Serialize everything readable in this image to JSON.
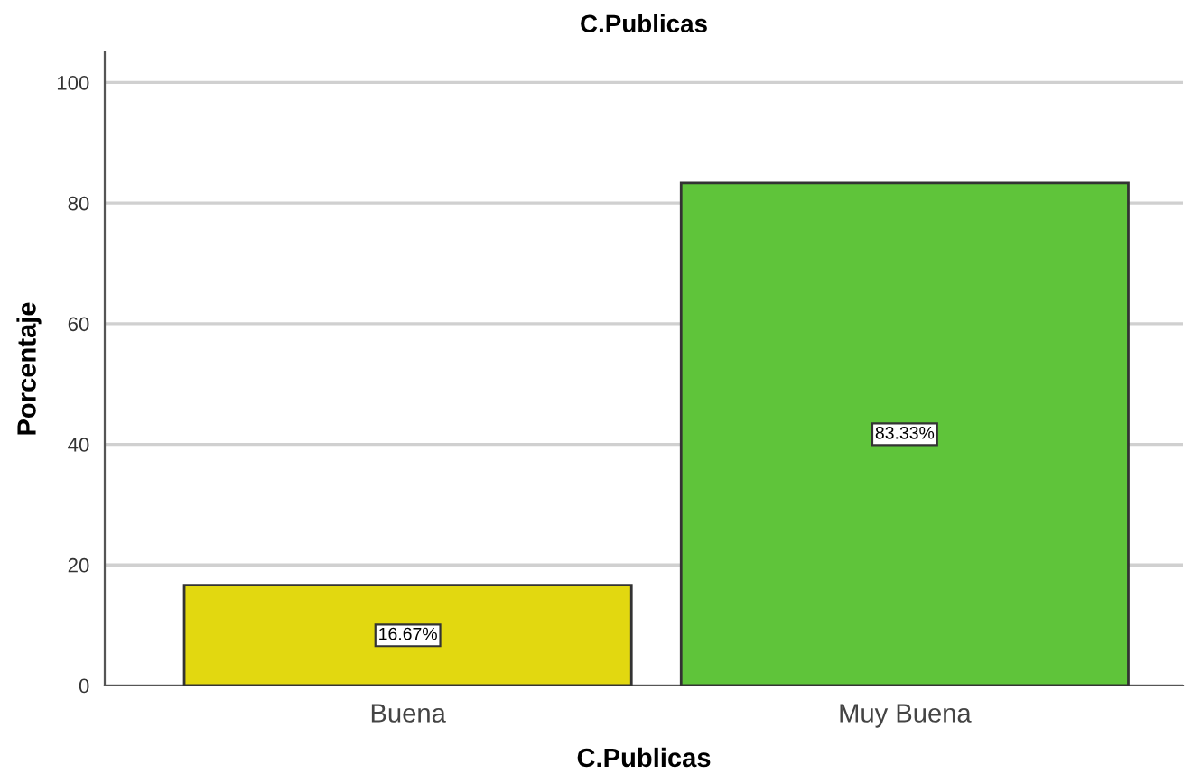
{
  "chart_data": {
    "type": "bar",
    "title": "C.Publicas",
    "xlabel": "C.Publicas",
    "ylabel": "Porcentaje",
    "categories": [
      "Buena",
      "Muy Buena"
    ],
    "values": [
      16.67,
      83.33
    ],
    "colors": [
      "#e2d810",
      "#5fc43a"
    ],
    "value_labels": [
      "16.67%",
      "83.33%"
    ],
    "ylim": [
      0,
      105
    ],
    "yticks": [
      0,
      20,
      40,
      60,
      80,
      100
    ],
    "grid": "y",
    "legend": false
  }
}
